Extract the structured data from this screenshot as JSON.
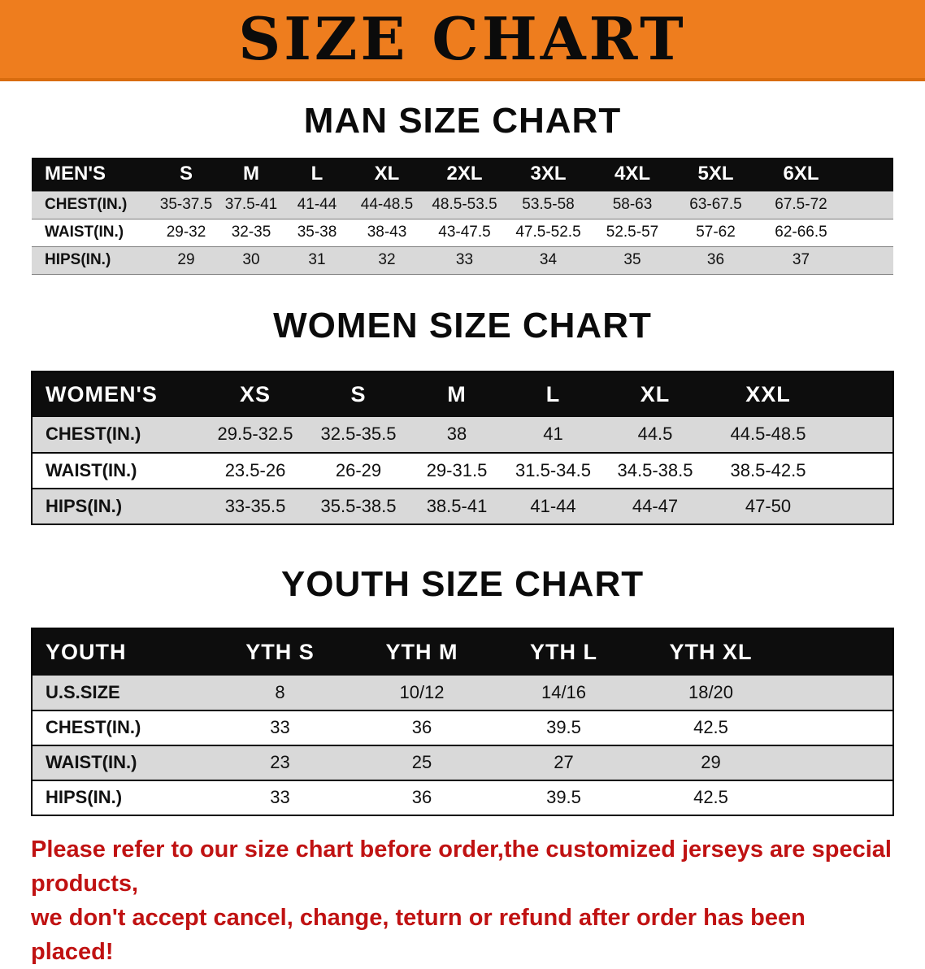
{
  "banner": {
    "title": "SIZE CHART"
  },
  "sections": {
    "men": {
      "heading": "MAN SIZE CHART",
      "table": {
        "header": [
          "MEN'S",
          "S",
          "M",
          "L",
          "XL",
          "2XL",
          "3XL",
          "4XL",
          "5XL",
          "6XL"
        ],
        "rows": [
          [
            "CHEST(IN.)",
            "35-37.5",
            "37.5-41",
            "41-44",
            "44-48.5",
            "48.5-53.5",
            "53.5-58",
            "58-63",
            "63-67.5",
            "67.5-72"
          ],
          [
            "WAIST(IN.)",
            "29-32",
            "32-35",
            "35-38",
            "38-43",
            "43-47.5",
            "47.5-52.5",
            "52.5-57",
            "57-62",
            "62-66.5"
          ],
          [
            "HIPS(IN.)",
            "29",
            "30",
            "31",
            "32",
            "33",
            "34",
            "35",
            "36",
            "37"
          ]
        ]
      }
    },
    "women": {
      "heading": "WOMEN SIZE CHART",
      "table": {
        "header": [
          "WOMEN'S",
          "XS",
          "S",
          "M",
          "L",
          "XL",
          "XXL"
        ],
        "rows": [
          [
            "CHEST(IN.)",
            "29.5-32.5",
            "32.5-35.5",
            "38",
            "41",
            "44.5",
            "44.5-48.5"
          ],
          [
            "WAIST(IN.)",
            "23.5-26",
            "26-29",
            "29-31.5",
            "31.5-34.5",
            "34.5-38.5",
            "38.5-42.5"
          ],
          [
            "HIPS(IN.)",
            "33-35.5",
            "35.5-38.5",
            "38.5-41",
            "41-44",
            "44-47",
            "47-50"
          ]
        ]
      }
    },
    "youth": {
      "heading": "YOUTH SIZE CHART",
      "table": {
        "header": [
          "YOUTH",
          "YTH S",
          "YTH M",
          "YTH L",
          "YTH XL"
        ],
        "rows": [
          [
            "U.S.SIZE",
            "8",
            "10/12",
            "14/16",
            "18/20"
          ],
          [
            "CHEST(IN.)",
            "33",
            "36",
            "39.5",
            "42.5"
          ],
          [
            "WAIST(IN.)",
            "23",
            "25",
            "27",
            "29"
          ],
          [
            "HIPS(IN.)",
            "33",
            "36",
            "39.5",
            "42.5"
          ]
        ]
      }
    }
  },
  "disclaimer": {
    "line1": "Please refer to our size chart before order,the customized jerseys are special products,",
    "line2": "we don't accept cancel, change, teturn or refund after order has been placed!"
  },
  "colors": {
    "banner_bg": "#ee7d1e",
    "header_bg": "#0d0d0d",
    "stripe": "#d9d9d9",
    "disclaimer_red": "#c01212"
  }
}
